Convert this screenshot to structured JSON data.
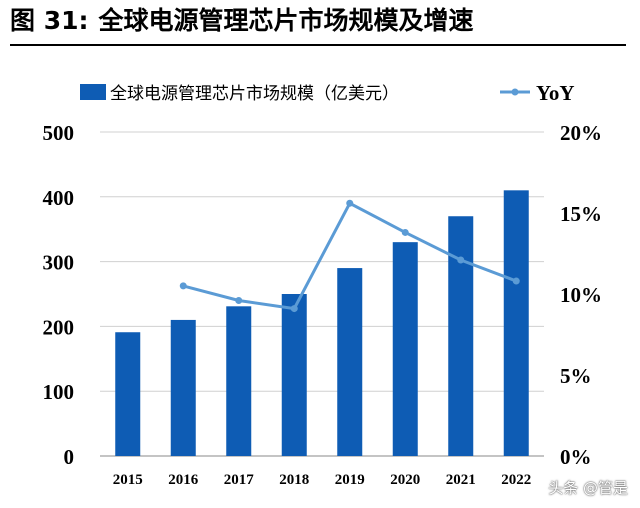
{
  "figure": {
    "number_label": "图 31:",
    "title": "全球电源管理芯片市场规模及增速"
  },
  "watermark": "头条 @管是",
  "chart_data": {
    "type": "bar",
    "categories": [
      "2015",
      "2016",
      "2017",
      "2018",
      "2019",
      "2020",
      "2021",
      "2022"
    ],
    "series": [
      {
        "name": "全球电源管理芯片市场规模（亿美元）",
        "type": "bar",
        "axis": "left",
        "values": [
          191,
          210,
          231,
          250,
          290,
          330,
          370,
          410
        ]
      },
      {
        "name": "YoY",
        "type": "line",
        "axis": "right",
        "values": [
          null,
          10.5,
          9.6,
          9.1,
          15.6,
          13.8,
          12.1,
          10.8
        ]
      }
    ],
    "left_axis": {
      "ylim": [
        0,
        500
      ],
      "ticks": [
        "0",
        "100",
        "200",
        "300",
        "400",
        "500"
      ]
    },
    "right_axis": {
      "ylim": [
        0,
        20
      ],
      "ticks": [
        "0%",
        "5%",
        "10%",
        "15%",
        "20%"
      ]
    },
    "grid": true,
    "legend_position": "top",
    "colors": {
      "bar": "#0E5CB4",
      "line": "#5B9BD5",
      "grid": "#d0d0d0"
    }
  }
}
